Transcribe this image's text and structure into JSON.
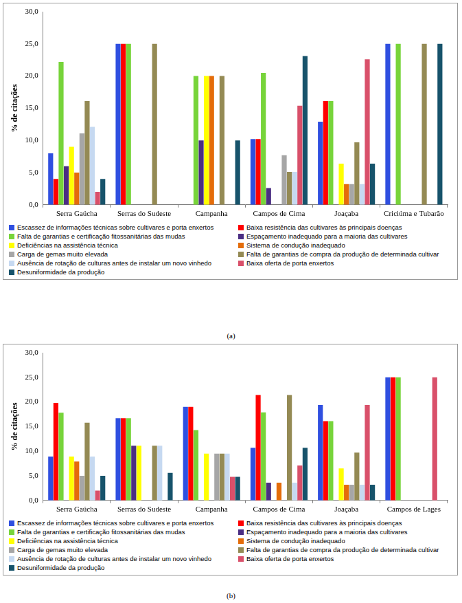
{
  "chart_data": [
    {
      "type": "bar",
      "caption": "(a)",
      "y_label": "% de citações",
      "grid": false,
      "legend": "bottom",
      "ylim": [
        0,
        30
      ],
      "yticks": [
        {
          "value": 0,
          "label": "0,0"
        },
        {
          "value": 5,
          "label": "5,0"
        },
        {
          "value": 10,
          "label": "10,0"
        },
        {
          "value": 15,
          "label": "15,0"
        },
        {
          "value": 20,
          "label": "20,0"
        },
        {
          "value": 25,
          "label": "25,0"
        },
        {
          "value": 30,
          "label": "30,0"
        }
      ],
      "categories": [
        "Serra Gaúcha",
        "Serras do Sudeste",
        "Campanha",
        "Campos de Cima",
        "Joaçaba",
        "Criciúma e Tubarão"
      ],
      "series": [
        {
          "name": "Escassez de informações técnicas sobre cultivares e porta enxertos",
          "color": "#2f4fe0",
          "values": [
            8.0,
            25.0,
            0,
            10.2,
            12.9,
            25.0
          ]
        },
        {
          "name": "Baixa resistência das cultivares às principais doenças",
          "color": "#ff0000",
          "values": [
            4.0,
            25.0,
            0,
            10.2,
            16.1,
            0
          ]
        },
        {
          "name": "Falta de garantias e certificação fitossanitárias das mudas",
          "color": "#77d43a",
          "values": [
            22.2,
            25.0,
            20.0,
            20.5,
            16.1,
            25.0
          ]
        },
        {
          "name": "Espaçamento inadequado para a maioria das cultivares",
          "color": "#4b2e83",
          "values": [
            6.0,
            0,
            10.0,
            2.6,
            0,
            0
          ]
        },
        {
          "name": "Deficiências na assistência técnica",
          "color": "#ffff00",
          "values": [
            9.0,
            0,
            20.0,
            0,
            6.4,
            0
          ]
        },
        {
          "name": "Sistema de condução inadequado",
          "color": "#e46c0a",
          "values": [
            5.0,
            0,
            20.0,
            0,
            3.2,
            0
          ]
        },
        {
          "name": "Carga de gemas muito elevada",
          "color": "#a6a6a6",
          "values": [
            11.1,
            0,
            0,
            7.7,
            3.2,
            0
          ]
        },
        {
          "name": "Falta de garantias de compra da produção de determinada cultivar",
          "color": "#948a54",
          "values": [
            16.1,
            25.0,
            20.0,
            5.1,
            9.7,
            25.0
          ]
        },
        {
          "name": "Ausência de rotação de culturas antes de instalar um novo vinhedo",
          "color": "#c6d9f1",
          "values": [
            12.1,
            0,
            0,
            5.1,
            3.2,
            0
          ]
        },
        {
          "name": "Baixa oferta de porta enxertos",
          "color": "#d9506a",
          "values": [
            2.0,
            0,
            0,
            15.4,
            22.6,
            0
          ]
        },
        {
          "name": "Desuniformidade da produção",
          "color": "#17536b",
          "values": [
            4.0,
            0,
            10.0,
            23.1,
            6.4,
            25.0
          ]
        }
      ]
    },
    {
      "type": "bar",
      "caption": "(b)",
      "y_label": "% de citações",
      "grid": false,
      "legend": "bottom",
      "ylim": [
        0,
        30
      ],
      "yticks": [
        {
          "value": 0,
          "label": "0,0"
        },
        {
          "value": 5,
          "label": "5,0"
        },
        {
          "value": 10,
          "label": "10,0"
        },
        {
          "value": 15,
          "label": "15,0"
        },
        {
          "value": 20,
          "label": "20,0"
        },
        {
          "value": 25,
          "label": "25,0"
        },
        {
          "value": 30,
          "label": "30,0"
        }
      ],
      "categories": [
        "Serra Gaúcha",
        "Serras do Sudeste",
        "Campanha",
        "Campos de Cima",
        "Joaçaba",
        "Campos de Lages"
      ],
      "series": [
        {
          "name": "Escassez de informações técnicas sobre cultivares e porta enxertos",
          "color": "#2f4fe0",
          "values": [
            8.9,
            16.7,
            19.0,
            10.7,
            19.4,
            25.0
          ]
        },
        {
          "name": "Baixa resistência das cultivares às principais doenças",
          "color": "#ff0000",
          "values": [
            19.8,
            16.7,
            19.0,
            21.4,
            16.1,
            25.0
          ]
        },
        {
          "name": "Falta de garantias e certificação fitossanitárias das mudas",
          "color": "#77d43a",
          "values": [
            17.8,
            16.7,
            14.3,
            17.9,
            16.1,
            25.0
          ]
        },
        {
          "name": "Espaçamento inadequado para a maioria das cultivares",
          "color": "#4b2e83",
          "values": [
            0,
            11.1,
            0,
            3.6,
            0,
            0
          ]
        },
        {
          "name": "Deficiências na assistência técnica",
          "color": "#ffff00",
          "values": [
            8.9,
            11.1,
            9.5,
            0,
            6.5,
            0
          ]
        },
        {
          "name": "Sistema de condução inadequado",
          "color": "#e46c0a",
          "values": [
            7.9,
            0,
            0,
            3.6,
            3.2,
            0
          ]
        },
        {
          "name": "Carga de gemas muito elevada",
          "color": "#a6a6a6",
          "values": [
            5.0,
            0,
            9.5,
            0,
            3.2,
            0
          ]
        },
        {
          "name": "Falta de garantias de compra da produção de determinada cultivar",
          "color": "#948a54",
          "values": [
            15.8,
            11.1,
            9.5,
            21.4,
            9.7,
            0
          ]
        },
        {
          "name": "Ausência de rotação de culturas antes de instalar um novo vinhedo",
          "color": "#c6d9f1",
          "values": [
            8.9,
            11.1,
            9.5,
            3.6,
            3.2,
            0
          ]
        },
        {
          "name": "Baixa oferta de porta enxertos",
          "color": "#d9506a",
          "values": [
            2.0,
            0,
            4.8,
            7.1,
            19.4,
            25.0
          ]
        },
        {
          "name": "Desuniformidade da produção",
          "color": "#17536b",
          "values": [
            5.0,
            5.6,
            4.8,
            10.7,
            3.2,
            0
          ]
        }
      ]
    }
  ]
}
